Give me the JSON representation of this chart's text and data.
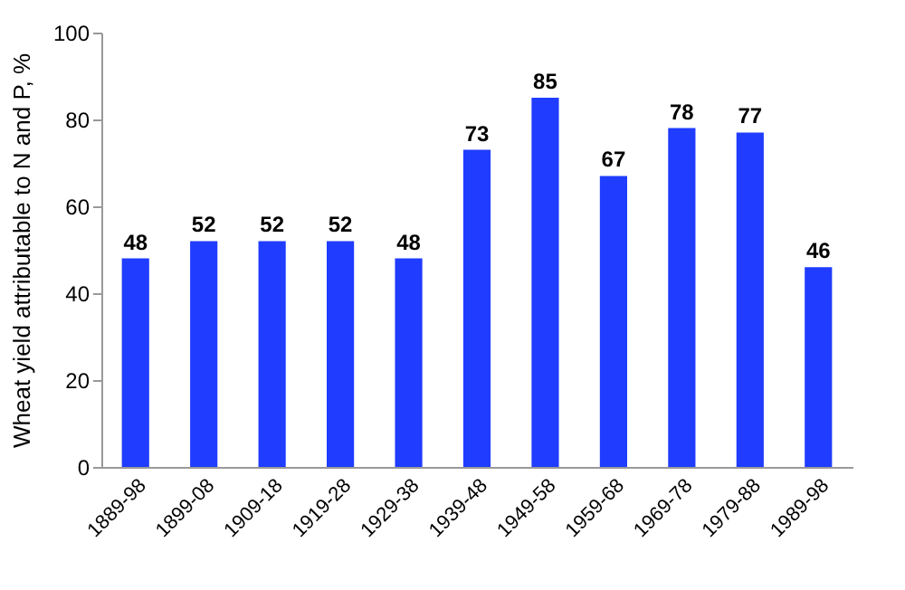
{
  "chart_data": {
    "type": "bar",
    "ylabel": "Wheat yield attributable to N and P, %",
    "categories": [
      "1889-98",
      "1899-08",
      "1909-18",
      "1919-28",
      "1929-38",
      "1939-48",
      "1949-58",
      "1959-68",
      "1969-78",
      "1979-88",
      "1989-98"
    ],
    "values": [
      48,
      52,
      52,
      52,
      48,
      73,
      85,
      67,
      78,
      77,
      46
    ],
    "color": "#1f3cff",
    "ylim": [
      0,
      100
    ],
    "yticks": [
      0,
      20,
      40,
      60,
      80,
      100
    ],
    "grid": false,
    "data_labels": true
  }
}
